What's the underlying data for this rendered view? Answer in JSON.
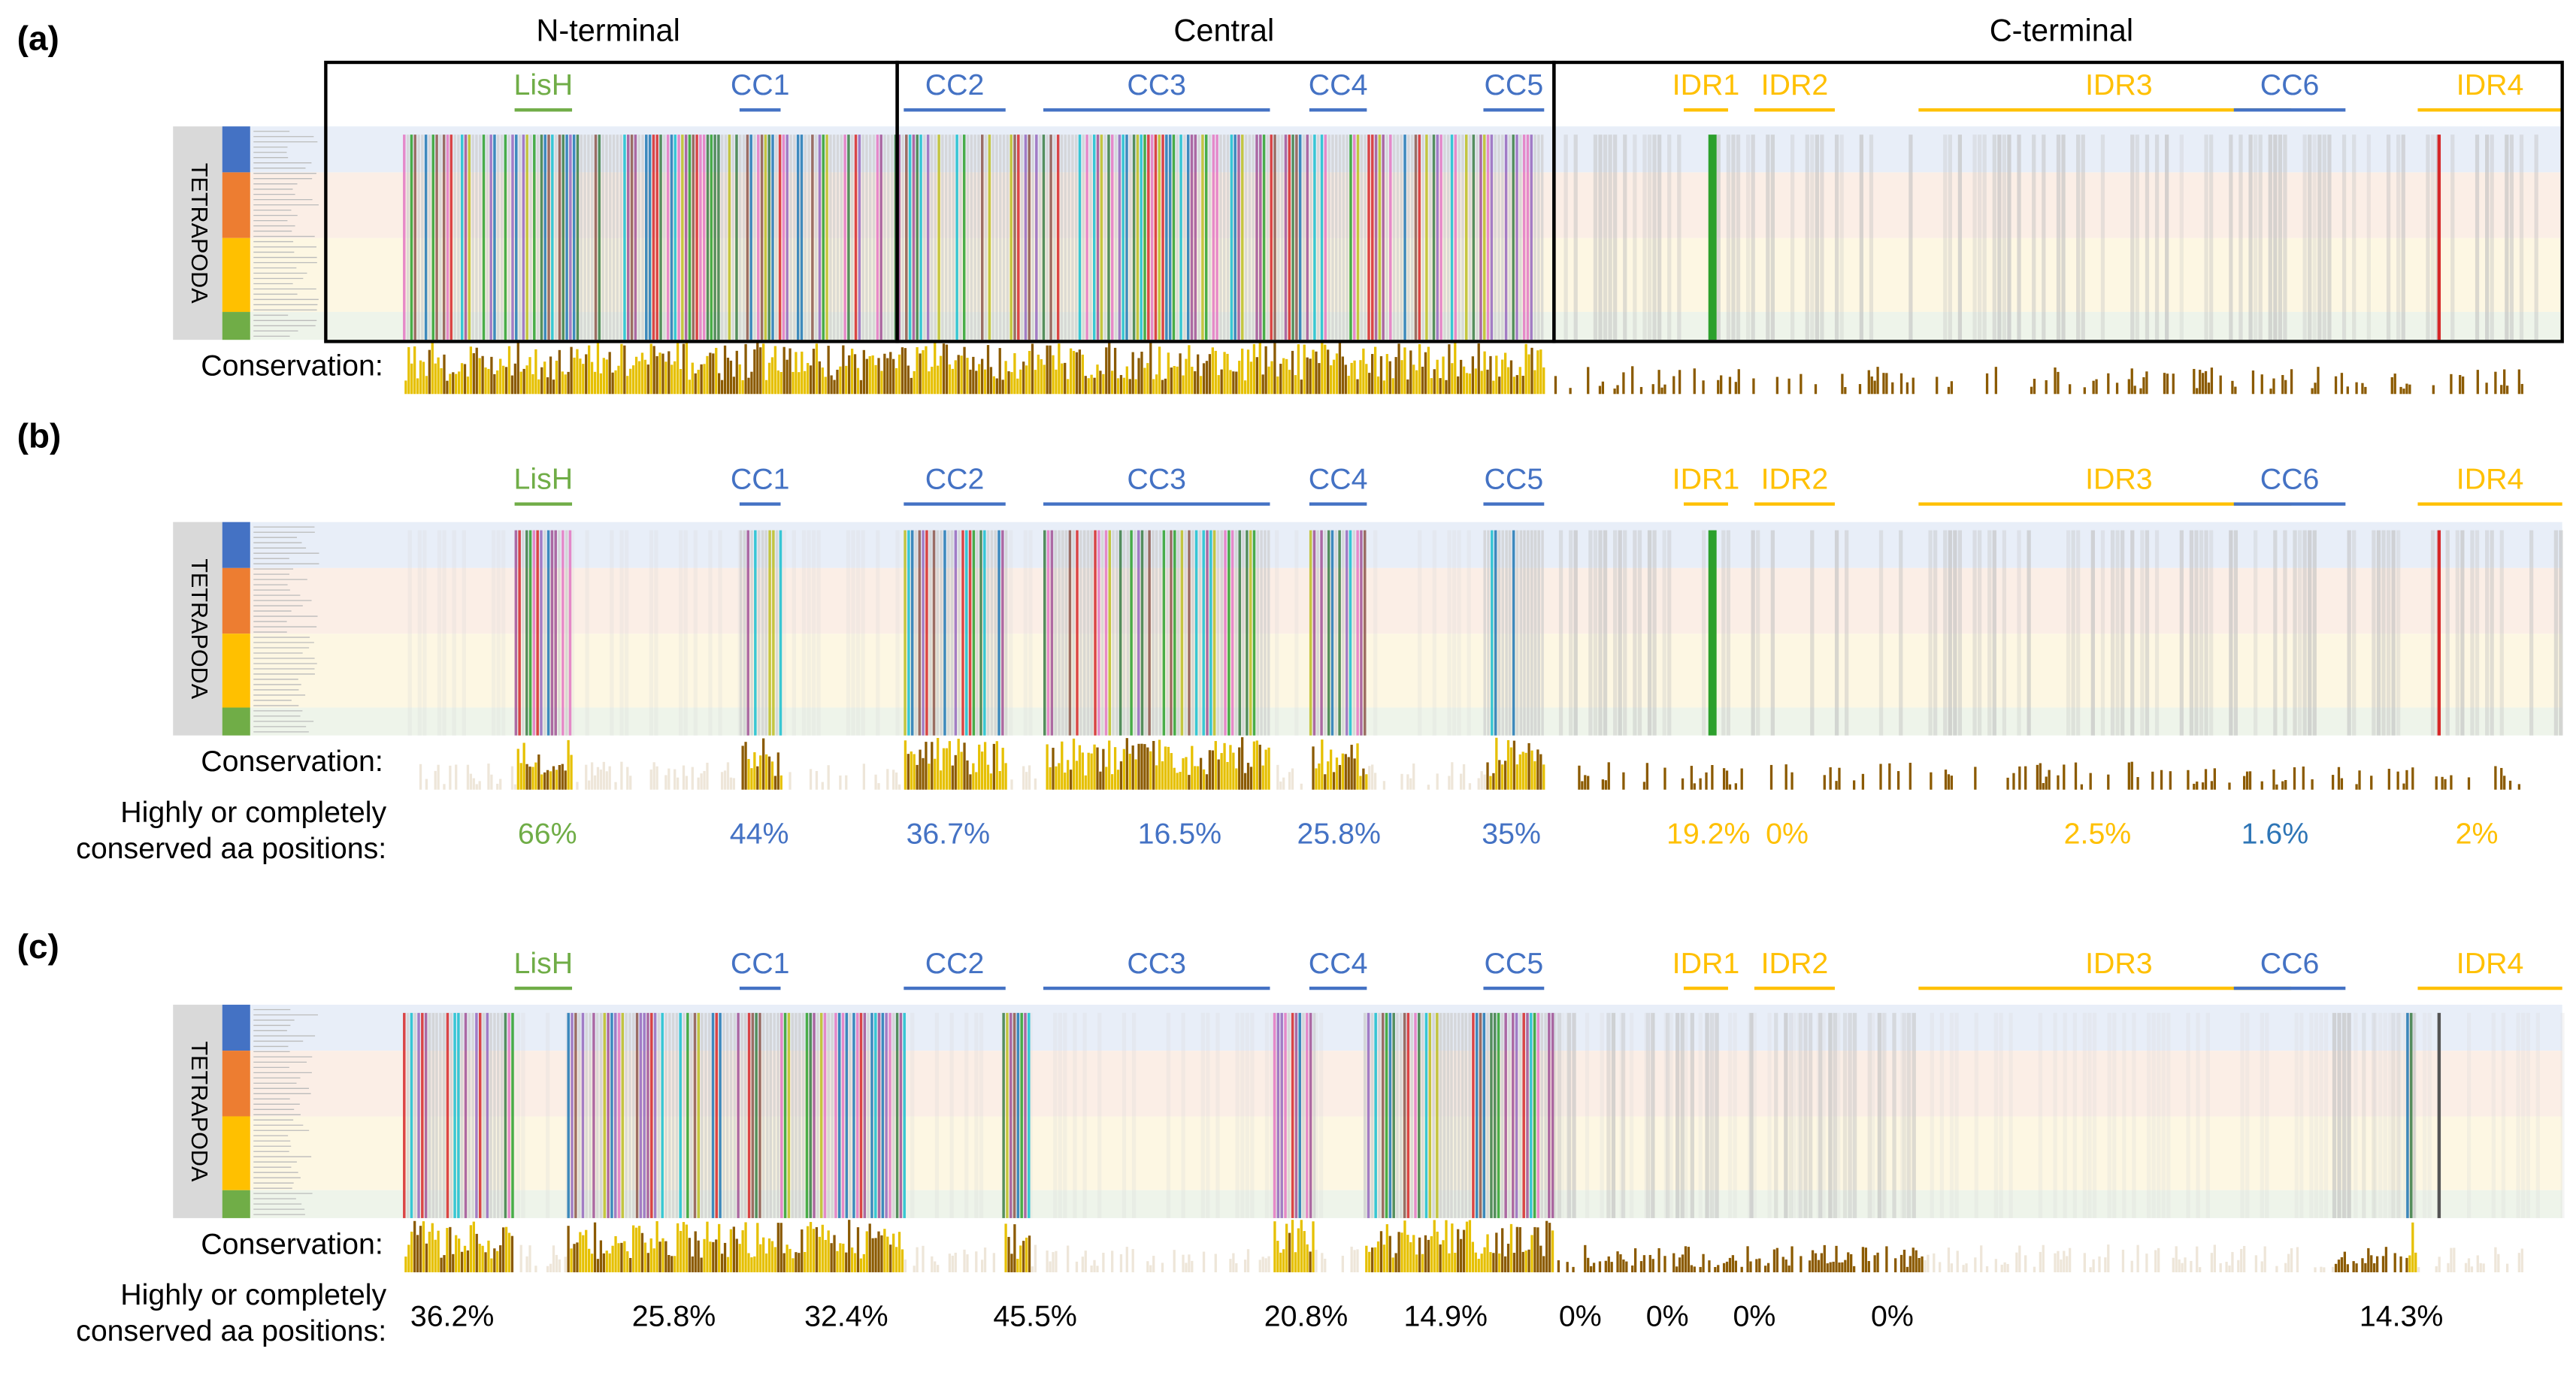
{
  "panels": [
    {
      "label": "(a)",
      "headers": [
        "N-terminal",
        "Central",
        "C-terminal"
      ],
      "side_label": "TETRAPODA",
      "conservation_label": "Conservation:",
      "domains": [
        {
          "name": "LisH",
          "color": "#70ad47"
        },
        {
          "name": "CC1",
          "color": "#4472c4"
        },
        {
          "name": "CC2",
          "color": "#4472c4"
        },
        {
          "name": "CC3",
          "color": "#4472c4"
        },
        {
          "name": "CC4",
          "color": "#4472c4"
        },
        {
          "name": "CC5",
          "color": "#4472c4"
        },
        {
          "name": "IDR1",
          "color": "#ffc000"
        },
        {
          "name": "IDR2",
          "color": "#ffc000"
        },
        {
          "name": "IDR3",
          "color": "#ffc000"
        },
        {
          "name": "CC6",
          "color": "#4472c4"
        },
        {
          "name": "IDR4",
          "color": "#ffc000"
        }
      ]
    },
    {
      "label": "(b)",
      "side_label": "TETRAPODA",
      "conservation_label": "Conservation:",
      "domains": [
        {
          "name": "LisH",
          "color": "#70ad47"
        },
        {
          "name": "CC1",
          "color": "#4472c4"
        },
        {
          "name": "CC2",
          "color": "#4472c4"
        },
        {
          "name": "CC3",
          "color": "#4472c4"
        },
        {
          "name": "CC4",
          "color": "#4472c4"
        },
        {
          "name": "CC5",
          "color": "#4472c4"
        },
        {
          "name": "IDR1",
          "color": "#ffc000"
        },
        {
          "name": "IDR2",
          "color": "#ffc000"
        },
        {
          "name": "IDR3",
          "color": "#ffc000"
        },
        {
          "name": "CC6",
          "color": "#4472c4"
        },
        {
          "name": "IDR4",
          "color": "#ffc000"
        }
      ],
      "positions_label": [
        "Highly or completely",
        "conserved aa positions:"
      ],
      "percentages": [
        {
          "text": "66%",
          "color": "#70ad47"
        },
        {
          "text": "44%",
          "color": "#4472c4"
        },
        {
          "text": "36.7%",
          "color": "#4472c4"
        },
        {
          "text": "16.5%",
          "color": "#4472c4"
        },
        {
          "text": "25.8%",
          "color": "#4472c4"
        },
        {
          "text": "35%",
          "color": "#4472c4"
        },
        {
          "text": "19.2%",
          "color": "#ffc000"
        },
        {
          "text": "0%",
          "color": "#ffc000"
        },
        {
          "text": "2.5%",
          "color": "#ffc000"
        },
        {
          "text": "1.6%",
          "color": "#2e75b6"
        },
        {
          "text": "2%",
          "color": "#ffc000"
        }
      ]
    },
    {
      "label": "(c)",
      "side_label": "TETRAPODA",
      "conservation_label": "Conservation:",
      "domains": [
        {
          "name": "LisH",
          "color": "#70ad47"
        },
        {
          "name": "CC1",
          "color": "#4472c4"
        },
        {
          "name": "CC2",
          "color": "#4472c4"
        },
        {
          "name": "CC3",
          "color": "#4472c4"
        },
        {
          "name": "CC4",
          "color": "#4472c4"
        },
        {
          "name": "CC5",
          "color": "#4472c4"
        },
        {
          "name": "IDR1",
          "color": "#ffc000"
        },
        {
          "name": "IDR2",
          "color": "#ffc000"
        },
        {
          "name": "IDR3",
          "color": "#ffc000"
        },
        {
          "name": "CC6",
          "color": "#4472c4"
        },
        {
          "name": "IDR4",
          "color": "#ffc000"
        }
      ],
      "positions_label": [
        "Highly or completely",
        "conserved aa positions:"
      ],
      "percentages": [
        {
          "text": "36.2%",
          "color": "#000000"
        },
        {
          "text": "25.8%",
          "color": "#000000"
        },
        {
          "text": "32.4%",
          "color": "#000000"
        },
        {
          "text": "45.5%",
          "color": "#000000"
        },
        {
          "text": "20.8%",
          "color": "#000000"
        },
        {
          "text": "14.9%",
          "color": "#000000"
        },
        {
          "text": "0%",
          "color": "#000000"
        },
        {
          "text": "0%",
          "color": "#000000"
        },
        {
          "text": "0%",
          "color": "#000000"
        },
        {
          "text": "0%",
          "color": "#000000"
        },
        {
          "text": "14.3%",
          "color": "#000000"
        }
      ]
    }
  ]
}
